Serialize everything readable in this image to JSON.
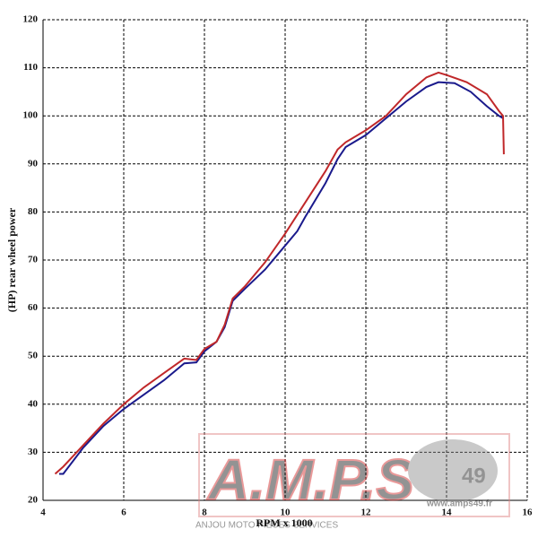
{
  "chart_data": {
    "type": "line",
    "x_label": "RPM x 1000",
    "y_label": "(HP) rear wheel power",
    "xlim": [
      4,
      16
    ],
    "xticks": [
      4,
      6,
      8,
      10,
      12,
      14,
      16
    ],
    "ylim": [
      20,
      120
    ],
    "yticks": [
      20,
      30,
      40,
      50,
      60,
      70,
      80,
      90,
      100,
      110,
      120
    ],
    "grid": true,
    "watermark": {
      "logo": "A.M.P.S",
      "number": "49",
      "subtitle": "ANJOU MOTO PIECES SERVICES",
      "url": "www.amps49.fr"
    },
    "series": [
      {
        "color": "#1a1a8c",
        "x": [
          4.4,
          4.5,
          5,
          5.5,
          6,
          6.5,
          7,
          7.5,
          7.8,
          8,
          8.3,
          8.5,
          8.7,
          9,
          9.5,
          10,
          10.3,
          10.5,
          11,
          11.3,
          11.5,
          12,
          12.5,
          13,
          13.5,
          13.8,
          14.2,
          14.6,
          15,
          15.3,
          15.4
        ],
        "values": [
          25.5,
          25.5,
          31,
          35.5,
          39,
          42,
          45,
          48.5,
          48.7,
          51,
          53,
          56,
          61.5,
          64,
          68,
          73,
          76,
          79,
          86,
          91,
          93.5,
          96,
          99.5,
          103,
          106,
          107,
          106.8,
          105,
          102,
          100,
          99.5
        ]
      },
      {
        "color": "#c0282a",
        "x": [
          4.3,
          4.5,
          5,
          5.5,
          6,
          6.5,
          7,
          7.5,
          7.8,
          8,
          8.3,
          8.5,
          8.7,
          9,
          9.5,
          10,
          10.5,
          11,
          11.3,
          11.5,
          12,
          12.5,
          13,
          13.5,
          13.8,
          14,
          14.5,
          15,
          15.3,
          15.4,
          15.42
        ],
        "values": [
          25.5,
          27,
          31.5,
          36,
          40,
          43.5,
          46.5,
          49.5,
          49.2,
          51.5,
          53,
          56.5,
          62,
          64.5,
          69.5,
          75.5,
          82,
          88.5,
          93,
          94.5,
          97,
          100,
          104.5,
          108,
          109,
          108.5,
          107,
          104.5,
          101,
          100,
          92
        ]
      }
    ]
  }
}
